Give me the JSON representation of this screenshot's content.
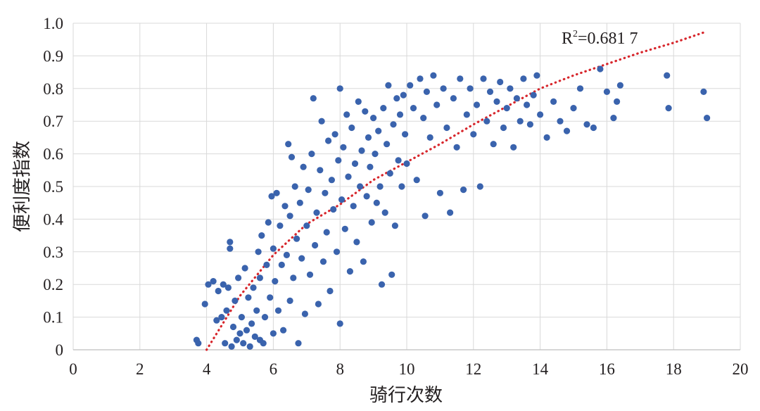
{
  "chart_data": {
    "type": "scatter",
    "title": "",
    "xlabel": "骑行次数",
    "ylabel": "便利度指数",
    "xlim": [
      0,
      20
    ],
    "ylim": [
      0,
      1.0
    ],
    "x_ticks": [
      0,
      2,
      4,
      6,
      8,
      10,
      12,
      14,
      16,
      18,
      20
    ],
    "y_ticks": [
      "0",
      "0.1",
      "0.2",
      "0.3",
      "0.4",
      "0.5",
      "0.6",
      "0.7",
      "0.8",
      "0.9",
      "1.0"
    ],
    "grid": true,
    "legend": "none",
    "colors": {
      "points": "#3a63ad",
      "trend": "#d7262c",
      "grid": "#d9d9d9"
    },
    "annotation": {
      "prefix": "R",
      "sup": "2",
      "value": "=0.681 7"
    },
    "trendline": {
      "style": "dotted",
      "points": [
        [
          4.0,
          0.0
        ],
        [
          5.0,
          0.165
        ],
        [
          6.0,
          0.29
        ],
        [
          7.0,
          0.385
        ],
        [
          8.0,
          0.445
        ],
        [
          9.0,
          0.52
        ],
        [
          10.0,
          0.575
        ],
        [
          11.0,
          0.63
        ],
        [
          12.0,
          0.69
        ],
        [
          13.0,
          0.745
        ],
        [
          14.0,
          0.8
        ],
        [
          15.0,
          0.84
        ],
        [
          16.0,
          0.875
        ],
        [
          17.0,
          0.91
        ],
        [
          18.0,
          0.94
        ],
        [
          19.0,
          0.975
        ]
      ]
    },
    "series": [
      {
        "points": [
          [
            3.7,
            0.03
          ],
          [
            3.75,
            0.02
          ],
          [
            3.95,
            0.14
          ],
          [
            4.05,
            0.2
          ],
          [
            4.2,
            0.21
          ],
          [
            4.3,
            0.09
          ],
          [
            4.35,
            0.18
          ],
          [
            4.45,
            0.1
          ],
          [
            4.5,
            0.2
          ],
          [
            4.55,
            0.02
          ],
          [
            4.6,
            0.12
          ],
          [
            4.65,
            0.19
          ],
          [
            4.7,
            0.33
          ],
          [
            4.7,
            0.31
          ],
          [
            4.75,
            0.01
          ],
          [
            4.8,
            0.07
          ],
          [
            4.85,
            0.15
          ],
          [
            4.9,
            0.03
          ],
          [
            4.95,
            0.22
          ],
          [
            5.0,
            0.05
          ],
          [
            5.05,
            0.1
          ],
          [
            5.1,
            0.02
          ],
          [
            5.15,
            0.25
          ],
          [
            5.2,
            0.06
          ],
          [
            5.25,
            0.16
          ],
          [
            5.3,
            0.01
          ],
          [
            5.35,
            0.08
          ],
          [
            5.4,
            0.19
          ],
          [
            5.45,
            0.04
          ],
          [
            5.5,
            0.12
          ],
          [
            5.55,
            0.3
          ],
          [
            5.6,
            0.03
          ],
          [
            5.6,
            0.22
          ],
          [
            5.65,
            0.35
          ],
          [
            5.7,
            0.02
          ],
          [
            5.75,
            0.1
          ],
          [
            5.8,
            0.26
          ],
          [
            5.85,
            0.39
          ],
          [
            5.9,
            0.16
          ],
          [
            5.95,
            0.47
          ],
          [
            6.0,
            0.05
          ],
          [
            6.0,
            0.31
          ],
          [
            6.05,
            0.21
          ],
          [
            6.1,
            0.48
          ],
          [
            6.15,
            0.12
          ],
          [
            6.2,
            0.38
          ],
          [
            6.25,
            0.26
          ],
          [
            6.3,
            0.06
          ],
          [
            6.35,
            0.44
          ],
          [
            6.4,
            0.29
          ],
          [
            6.45,
            0.63
          ],
          [
            6.5,
            0.15
          ],
          [
            6.5,
            0.41
          ],
          [
            6.55,
            0.59
          ],
          [
            6.6,
            0.22
          ],
          [
            6.65,
            0.5
          ],
          [
            6.7,
            0.34
          ],
          [
            6.75,
            0.02
          ],
          [
            6.8,
            0.45
          ],
          [
            6.85,
            0.28
          ],
          [
            6.9,
            0.56
          ],
          [
            6.95,
            0.11
          ],
          [
            7.0,
            0.38
          ],
          [
            7.05,
            0.49
          ],
          [
            7.1,
            0.23
          ],
          [
            7.15,
            0.6
          ],
          [
            7.2,
            0.77
          ],
          [
            7.25,
            0.32
          ],
          [
            7.3,
            0.42
          ],
          [
            7.35,
            0.14
          ],
          [
            7.4,
            0.55
          ],
          [
            7.45,
            0.7
          ],
          [
            7.5,
            0.27
          ],
          [
            7.55,
            0.48
          ],
          [
            7.6,
            0.36
          ],
          [
            7.65,
            0.64
          ],
          [
            7.7,
            0.18
          ],
          [
            7.75,
            0.52
          ],
          [
            7.8,
            0.43
          ],
          [
            7.85,
            0.66
          ],
          [
            7.9,
            0.3
          ],
          [
            7.95,
            0.58
          ],
          [
            8.0,
            0.8
          ],
          [
            8.0,
            0.08
          ],
          [
            8.05,
            0.46
          ],
          [
            8.1,
            0.62
          ],
          [
            8.15,
            0.37
          ],
          [
            8.2,
            0.72
          ],
          [
            8.25,
            0.53
          ],
          [
            8.3,
            0.24
          ],
          [
            8.35,
            0.68
          ],
          [
            8.4,
            0.44
          ],
          [
            8.45,
            0.57
          ],
          [
            8.5,
            0.33
          ],
          [
            8.55,
            0.76
          ],
          [
            8.6,
            0.5
          ],
          [
            8.65,
            0.61
          ],
          [
            8.7,
            0.27
          ],
          [
            8.75,
            0.73
          ],
          [
            8.8,
            0.47
          ],
          [
            8.85,
            0.65
          ],
          [
            8.9,
            0.56
          ],
          [
            8.95,
            0.39
          ],
          [
            9.0,
            0.71
          ],
          [
            9.05,
            0.6
          ],
          [
            9.1,
            0.45
          ],
          [
            9.15,
            0.67
          ],
          [
            9.2,
            0.5
          ],
          [
            9.25,
            0.2
          ],
          [
            9.3,
            0.74
          ],
          [
            9.35,
            0.42
          ],
          [
            9.4,
            0.63
          ],
          [
            9.45,
            0.81
          ],
          [
            9.5,
            0.54
          ],
          [
            9.55,
            0.23
          ],
          [
            9.6,
            0.69
          ],
          [
            9.65,
            0.38
          ],
          [
            9.7,
            0.77
          ],
          [
            9.75,
            0.58
          ],
          [
            9.8,
            0.72
          ],
          [
            9.85,
            0.5
          ],
          [
            9.9,
            0.78
          ],
          [
            9.95,
            0.66
          ],
          [
            10.0,
            0.57
          ],
          [
            10.1,
            0.81
          ],
          [
            10.2,
            0.74
          ],
          [
            10.3,
            0.52
          ],
          [
            10.4,
            0.83
          ],
          [
            10.5,
            0.71
          ],
          [
            10.55,
            0.41
          ],
          [
            10.6,
            0.79
          ],
          [
            10.7,
            0.65
          ],
          [
            10.8,
            0.84
          ],
          [
            10.9,
            0.75
          ],
          [
            11.0,
            0.48
          ],
          [
            11.1,
            0.8
          ],
          [
            11.2,
            0.68
          ],
          [
            11.3,
            0.42
          ],
          [
            11.4,
            0.77
          ],
          [
            11.5,
            0.62
          ],
          [
            11.6,
            0.83
          ],
          [
            11.7,
            0.49
          ],
          [
            11.8,
            0.72
          ],
          [
            11.9,
            0.8
          ],
          [
            12.0,
            0.66
          ],
          [
            12.1,
            0.75
          ],
          [
            12.2,
            0.5
          ],
          [
            12.3,
            0.83
          ],
          [
            12.4,
            0.7
          ],
          [
            12.5,
            0.79
          ],
          [
            12.6,
            0.63
          ],
          [
            12.7,
            0.76
          ],
          [
            12.8,
            0.82
          ],
          [
            12.9,
            0.68
          ],
          [
            13.0,
            0.74
          ],
          [
            13.1,
            0.8
          ],
          [
            13.2,
            0.62
          ],
          [
            13.3,
            0.77
          ],
          [
            13.4,
            0.7
          ],
          [
            13.5,
            0.83
          ],
          [
            13.6,
            0.75
          ],
          [
            13.7,
            0.69
          ],
          [
            13.8,
            0.78
          ],
          [
            13.9,
            0.84
          ],
          [
            14.0,
            0.72
          ],
          [
            14.2,
            0.65
          ],
          [
            14.4,
            0.76
          ],
          [
            14.6,
            0.7
          ],
          [
            14.8,
            0.67
          ],
          [
            15.0,
            0.74
          ],
          [
            15.2,
            0.8
          ],
          [
            15.4,
            0.69
          ],
          [
            15.6,
            0.68
          ],
          [
            15.8,
            0.86
          ],
          [
            16.0,
            0.79
          ],
          [
            16.2,
            0.71
          ],
          [
            16.3,
            0.76
          ],
          [
            16.4,
            0.81
          ],
          [
            17.8,
            0.84
          ],
          [
            17.85,
            0.74
          ],
          [
            18.9,
            0.79
          ],
          [
            19.0,
            0.71
          ]
        ]
      }
    ]
  }
}
